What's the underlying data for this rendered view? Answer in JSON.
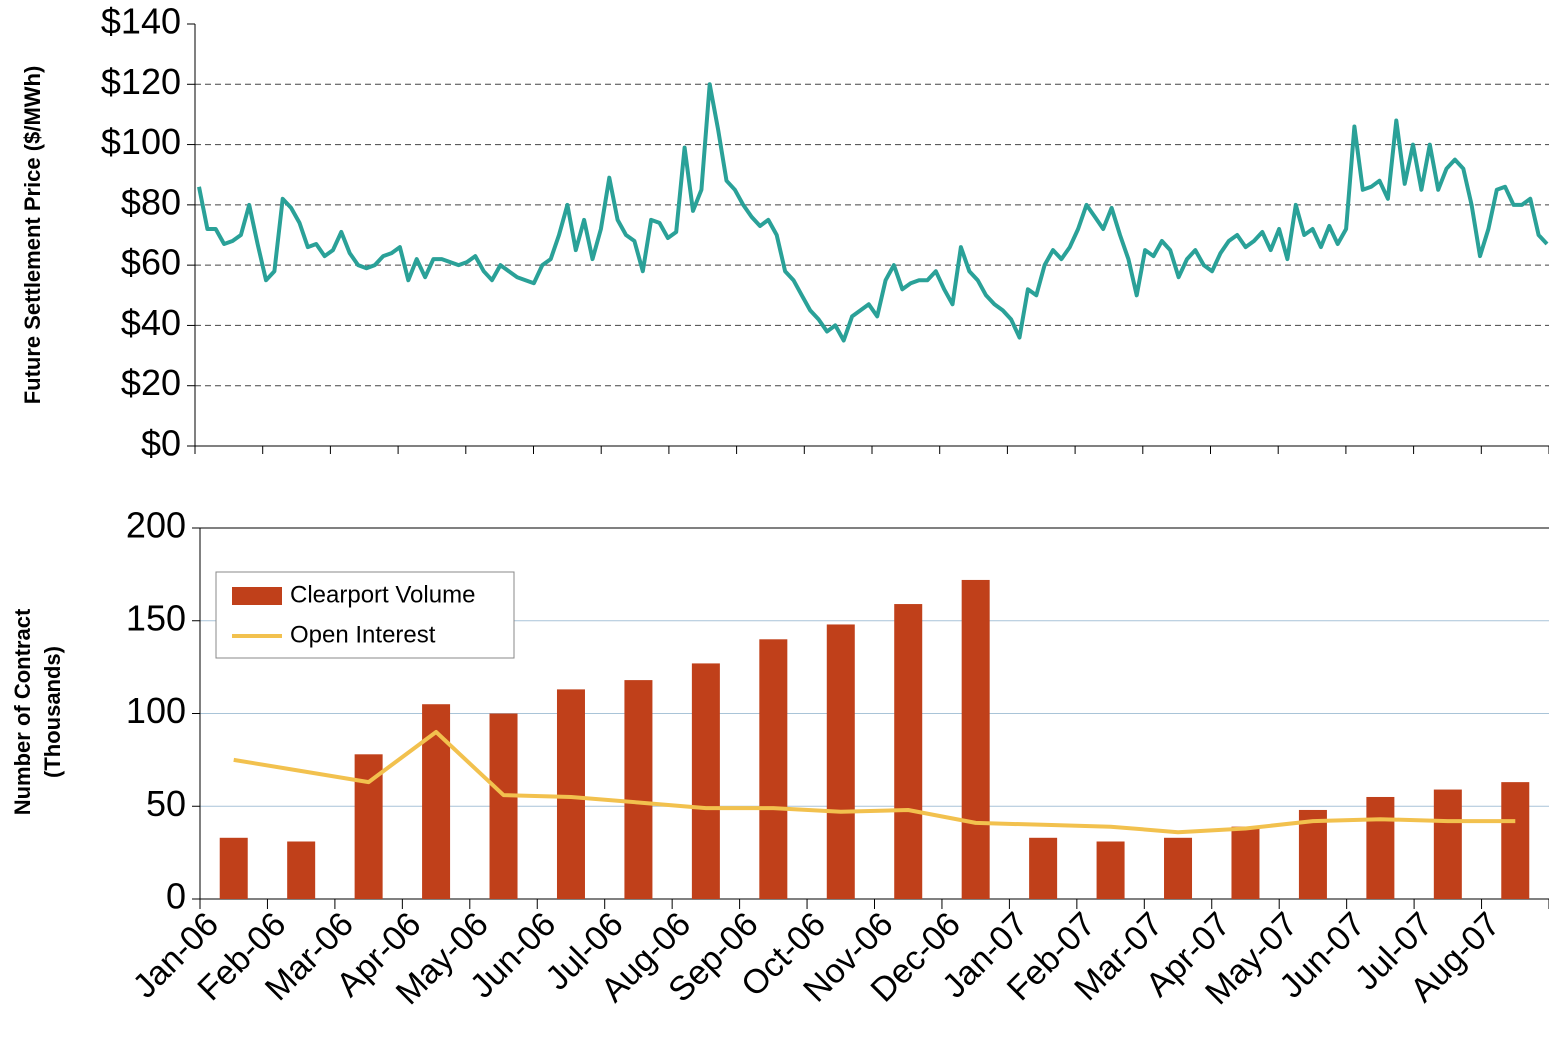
{
  "chart_data": [
    {
      "type": "line",
      "ylabel": "Future Settlement Price ($/MWh)",
      "series": [
        {
          "name": "Future Settlement Price",
          "color": "#2aa198",
          "values": [
            86,
            72,
            72,
            67,
            68,
            70,
            80,
            67,
            55,
            58,
            82,
            79,
            74,
            66,
            67,
            63,
            65,
            71,
            64,
            60,
            59,
            60,
            63,
            64,
            66,
            55,
            62,
            56,
            62,
            62,
            61,
            60,
            61,
            63,
            58,
            55,
            60,
            58,
            56,
            55,
            54,
            60,
            62,
            70,
            80,
            65,
            75,
            62,
            72,
            89,
            75,
            70,
            68,
            58,
            75,
            74,
            69,
            71,
            99,
            78,
            85,
            120,
            105,
            88,
            85,
            80,
            76,
            73,
            75,
            70,
            58,
            55,
            50,
            45,
            42,
            38,
            40,
            35,
            43,
            45,
            47,
            43,
            55,
            60,
            52,
            54,
            55,
            55,
            58,
            52,
            47,
            66,
            58,
            55,
            50,
            47,
            45,
            42,
            36,
            52,
            50,
            60,
            65,
            62,
            66,
            72,
            80,
            76,
            72,
            79,
            70,
            62,
            50,
            65,
            63,
            68,
            65,
            56,
            62,
            65,
            60,
            58,
            64,
            68,
            70,
            66,
            68,
            71,
            65,
            72,
            62,
            80,
            70,
            72,
            66,
            73,
            67,
            72,
            106,
            85,
            86,
            88,
            82,
            108,
            87,
            100,
            85,
            100,
            85,
            92,
            95,
            92,
            80,
            63,
            72,
            85,
            86,
            80,
            80,
            82,
            70,
            67
          ]
        }
      ],
      "ylim": [
        0,
        140
      ],
      "yticks": [
        {
          "value": 0,
          "label": "$0"
        },
        {
          "value": 20,
          "label": "$20"
        },
        {
          "value": 40,
          "label": "$40"
        },
        {
          "value": 60,
          "label": "$60"
        },
        {
          "value": 80,
          "label": "$80"
        },
        {
          "value": 100,
          "label": "$100"
        },
        {
          "value": 120,
          "label": "$120"
        },
        {
          "value": 140,
          "label": "$140"
        }
      ],
      "grid": true
    },
    {
      "type": "bar-line",
      "ylabel": [
        "Number of Contract",
        "(Thousands)"
      ],
      "categories": [
        "Jan-06",
        "Feb-06",
        "Mar-06",
        "Apr-06",
        "May-06",
        "Jun-06",
        "Jul-06",
        "Aug-06",
        "Sep-06",
        "Oct-06",
        "Nov-06",
        "Dec-06",
        "Jan-07",
        "Feb-07",
        "Mar-07",
        "Apr-07",
        "May-07",
        "Jun-07",
        "Jul-07",
        "Aug-07"
      ],
      "series": [
        {
          "name": "Clearport Volume",
          "kind": "bar",
          "color": "#c0401a",
          "values": [
            33,
            31,
            78,
            105,
            100,
            113,
            118,
            127,
            140,
            148,
            159,
            172,
            33,
            31,
            33,
            39,
            48,
            55,
            59,
            63
          ]
        },
        {
          "name": "Open Interest",
          "kind": "line",
          "color": "#f2c14e",
          "values": [
            75,
            69,
            63,
            90,
            56,
            55,
            52,
            49,
            49,
            47,
            48,
            41,
            40,
            39,
            36,
            38,
            42,
            43,
            42,
            42
          ]
        }
      ],
      "ylim": [
        0,
        200
      ],
      "yticks": [
        0,
        50,
        100,
        150,
        200
      ],
      "grid": true
    }
  ]
}
